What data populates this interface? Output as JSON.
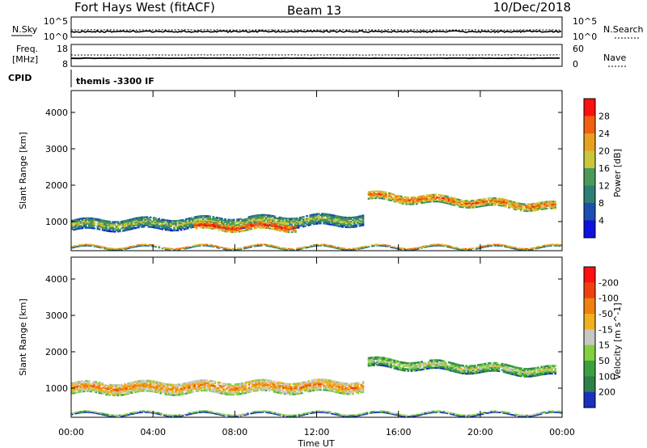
{
  "header": {
    "station": "Fort Hays West (fitACF)",
    "beam": "Beam 13",
    "date": "10/Dec/2018"
  },
  "status_panels": {
    "nsky_label": "N.Sky",
    "nsky_ticks": [
      "10^5",
      "10^0"
    ],
    "nsky_right_ticks": [
      "10^5",
      "10^0"
    ],
    "nsearch_label": "N.Search",
    "freq_label": "Freq.",
    "freq_unit": "[MHz]",
    "freq_ticks": [
      "18",
      "8"
    ],
    "nave_ticks": [
      "60",
      "0"
    ],
    "nave_label": "Nave",
    "cpid_label": "CPID",
    "cpid_value": "themis -3300 IF"
  },
  "x_axis": {
    "label": "Time UT",
    "ticks": [
      "00:00",
      "04:00",
      "08:00",
      "12:00",
      "16:00",
      "20:00",
      "00:00"
    ]
  },
  "chart_data": [
    {
      "type": "heatmap",
      "ylabel": "Slant Range [km]",
      "yticks": [
        1000,
        2000,
        3000,
        4000
      ],
      "ylim": [
        200,
        4600
      ],
      "xlim": [
        0,
        24
      ],
      "colorbar": {
        "label": "Power [dB]",
        "ticks": [
          "4",
          "8",
          "12",
          "16",
          "20",
          "24",
          "28"
        ],
        "colors": [
          "#1010e0",
          "#1d4fb0",
          "#2e7f74",
          "#4a9a58",
          "#c8c83a",
          "#e8a020",
          "#f06010",
          "#ff1010"
        ]
      },
      "bands": [
        {
          "from": 0.0,
          "to": 14.3,
          "center_start": 900,
          "center_end": 1050,
          "width": 300,
          "level": 4
        },
        {
          "from": 6.0,
          "to": 11.0,
          "center_start": 850,
          "center_end": 850,
          "width": 180,
          "level": 7
        },
        {
          "from": 14.5,
          "to": 23.7,
          "center_start": 1700,
          "center_end": 1400,
          "width": 220,
          "level": 6
        },
        {
          "from": 0.0,
          "to": 24.0,
          "center_start": 300,
          "center_end": 300,
          "width": 60,
          "level": 5
        }
      ]
    },
    {
      "type": "heatmap",
      "ylabel": "Slant Range [km]",
      "yticks": [
        1000,
        2000,
        3000,
        4000
      ],
      "ylim": [
        200,
        4600
      ],
      "xlim": [
        0,
        24
      ],
      "colorbar": {
        "label": "Velocity [m s^-1]",
        "ticks": [
          "200",
          "100",
          "50",
          "15",
          "-15",
          "-50",
          "-100",
          "-200"
        ],
        "colors": [
          "#1a30c0",
          "#2e7f4a",
          "#3aa040",
          "#80d040",
          "#c8c8c0",
          "#f0b020",
          "#f08010",
          "#f04010",
          "#ff1010"
        ]
      },
      "bands": [
        {
          "from": 0.0,
          "to": 14.3,
          "center_start": 1000,
          "center_end": 1050,
          "width": 320,
          "level": 6
        },
        {
          "from": 14.5,
          "to": 23.7,
          "center_start": 1700,
          "center_end": 1450,
          "width": 250,
          "level": 4
        },
        {
          "from": 0.0,
          "to": 24.0,
          "center_start": 300,
          "center_end": 300,
          "width": 60,
          "level": 3
        }
      ]
    }
  ]
}
